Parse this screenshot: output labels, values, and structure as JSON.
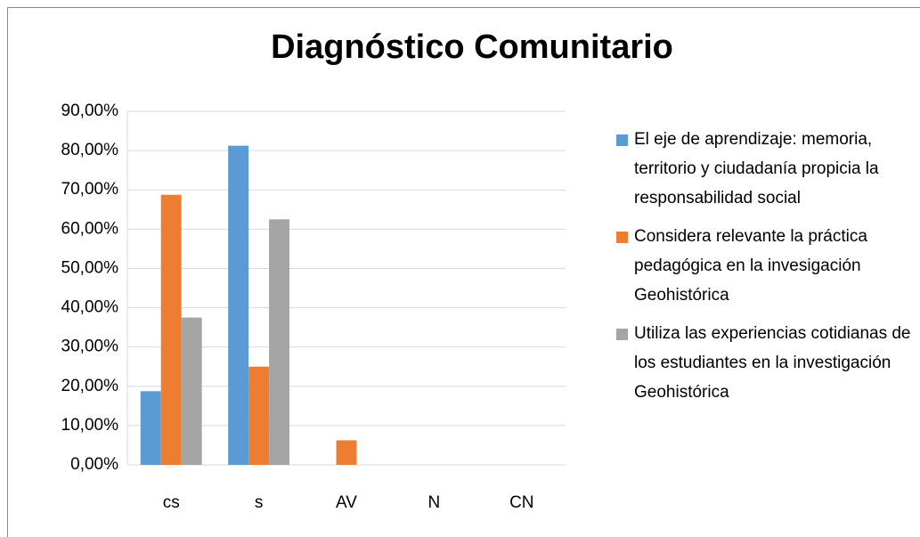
{
  "chart_data": {
    "type": "bar",
    "title": "Diagnóstico Comunitario",
    "categories": [
      "cs",
      "s",
      "AV",
      "N",
      "CN"
    ],
    "series": [
      {
        "name": "El eje de aprendizaje: memoria, territorio y ciudadanía propicia la responsabilidad social",
        "color": "#5b9bd5",
        "values": [
          18.75,
          81.25,
          0,
          0,
          0
        ]
      },
      {
        "name": "Considera relevante la práctica pedagógica en la invesigación Geohistórica",
        "color": "#ed7d31",
        "values": [
          68.75,
          25,
          6.25,
          0,
          0
        ]
      },
      {
        "name": "Utiliza las experiencias cotidianas de los estudiantes en la investigación Geohistórica",
        "color": "#a5a5a5",
        "values": [
          37.5,
          62.5,
          0,
          0,
          0
        ]
      }
    ],
    "ylim": [
      0,
      90
    ],
    "yticks": [
      {
        "value": 0,
        "label": "0,00%"
      },
      {
        "value": 10,
        "label": "10,00%"
      },
      {
        "value": 20,
        "label": "20,00%"
      },
      {
        "value": 30,
        "label": "30,00%"
      },
      {
        "value": 40,
        "label": "40,00%"
      },
      {
        "value": 50,
        "label": "50,00%"
      },
      {
        "value": 60,
        "label": "60,00%"
      },
      {
        "value": 70,
        "label": "70,00%"
      },
      {
        "value": 80,
        "label": "80,00%"
      },
      {
        "value": 90,
        "label": "90,00%"
      }
    ],
    "grid": true,
    "legend": "right"
  }
}
